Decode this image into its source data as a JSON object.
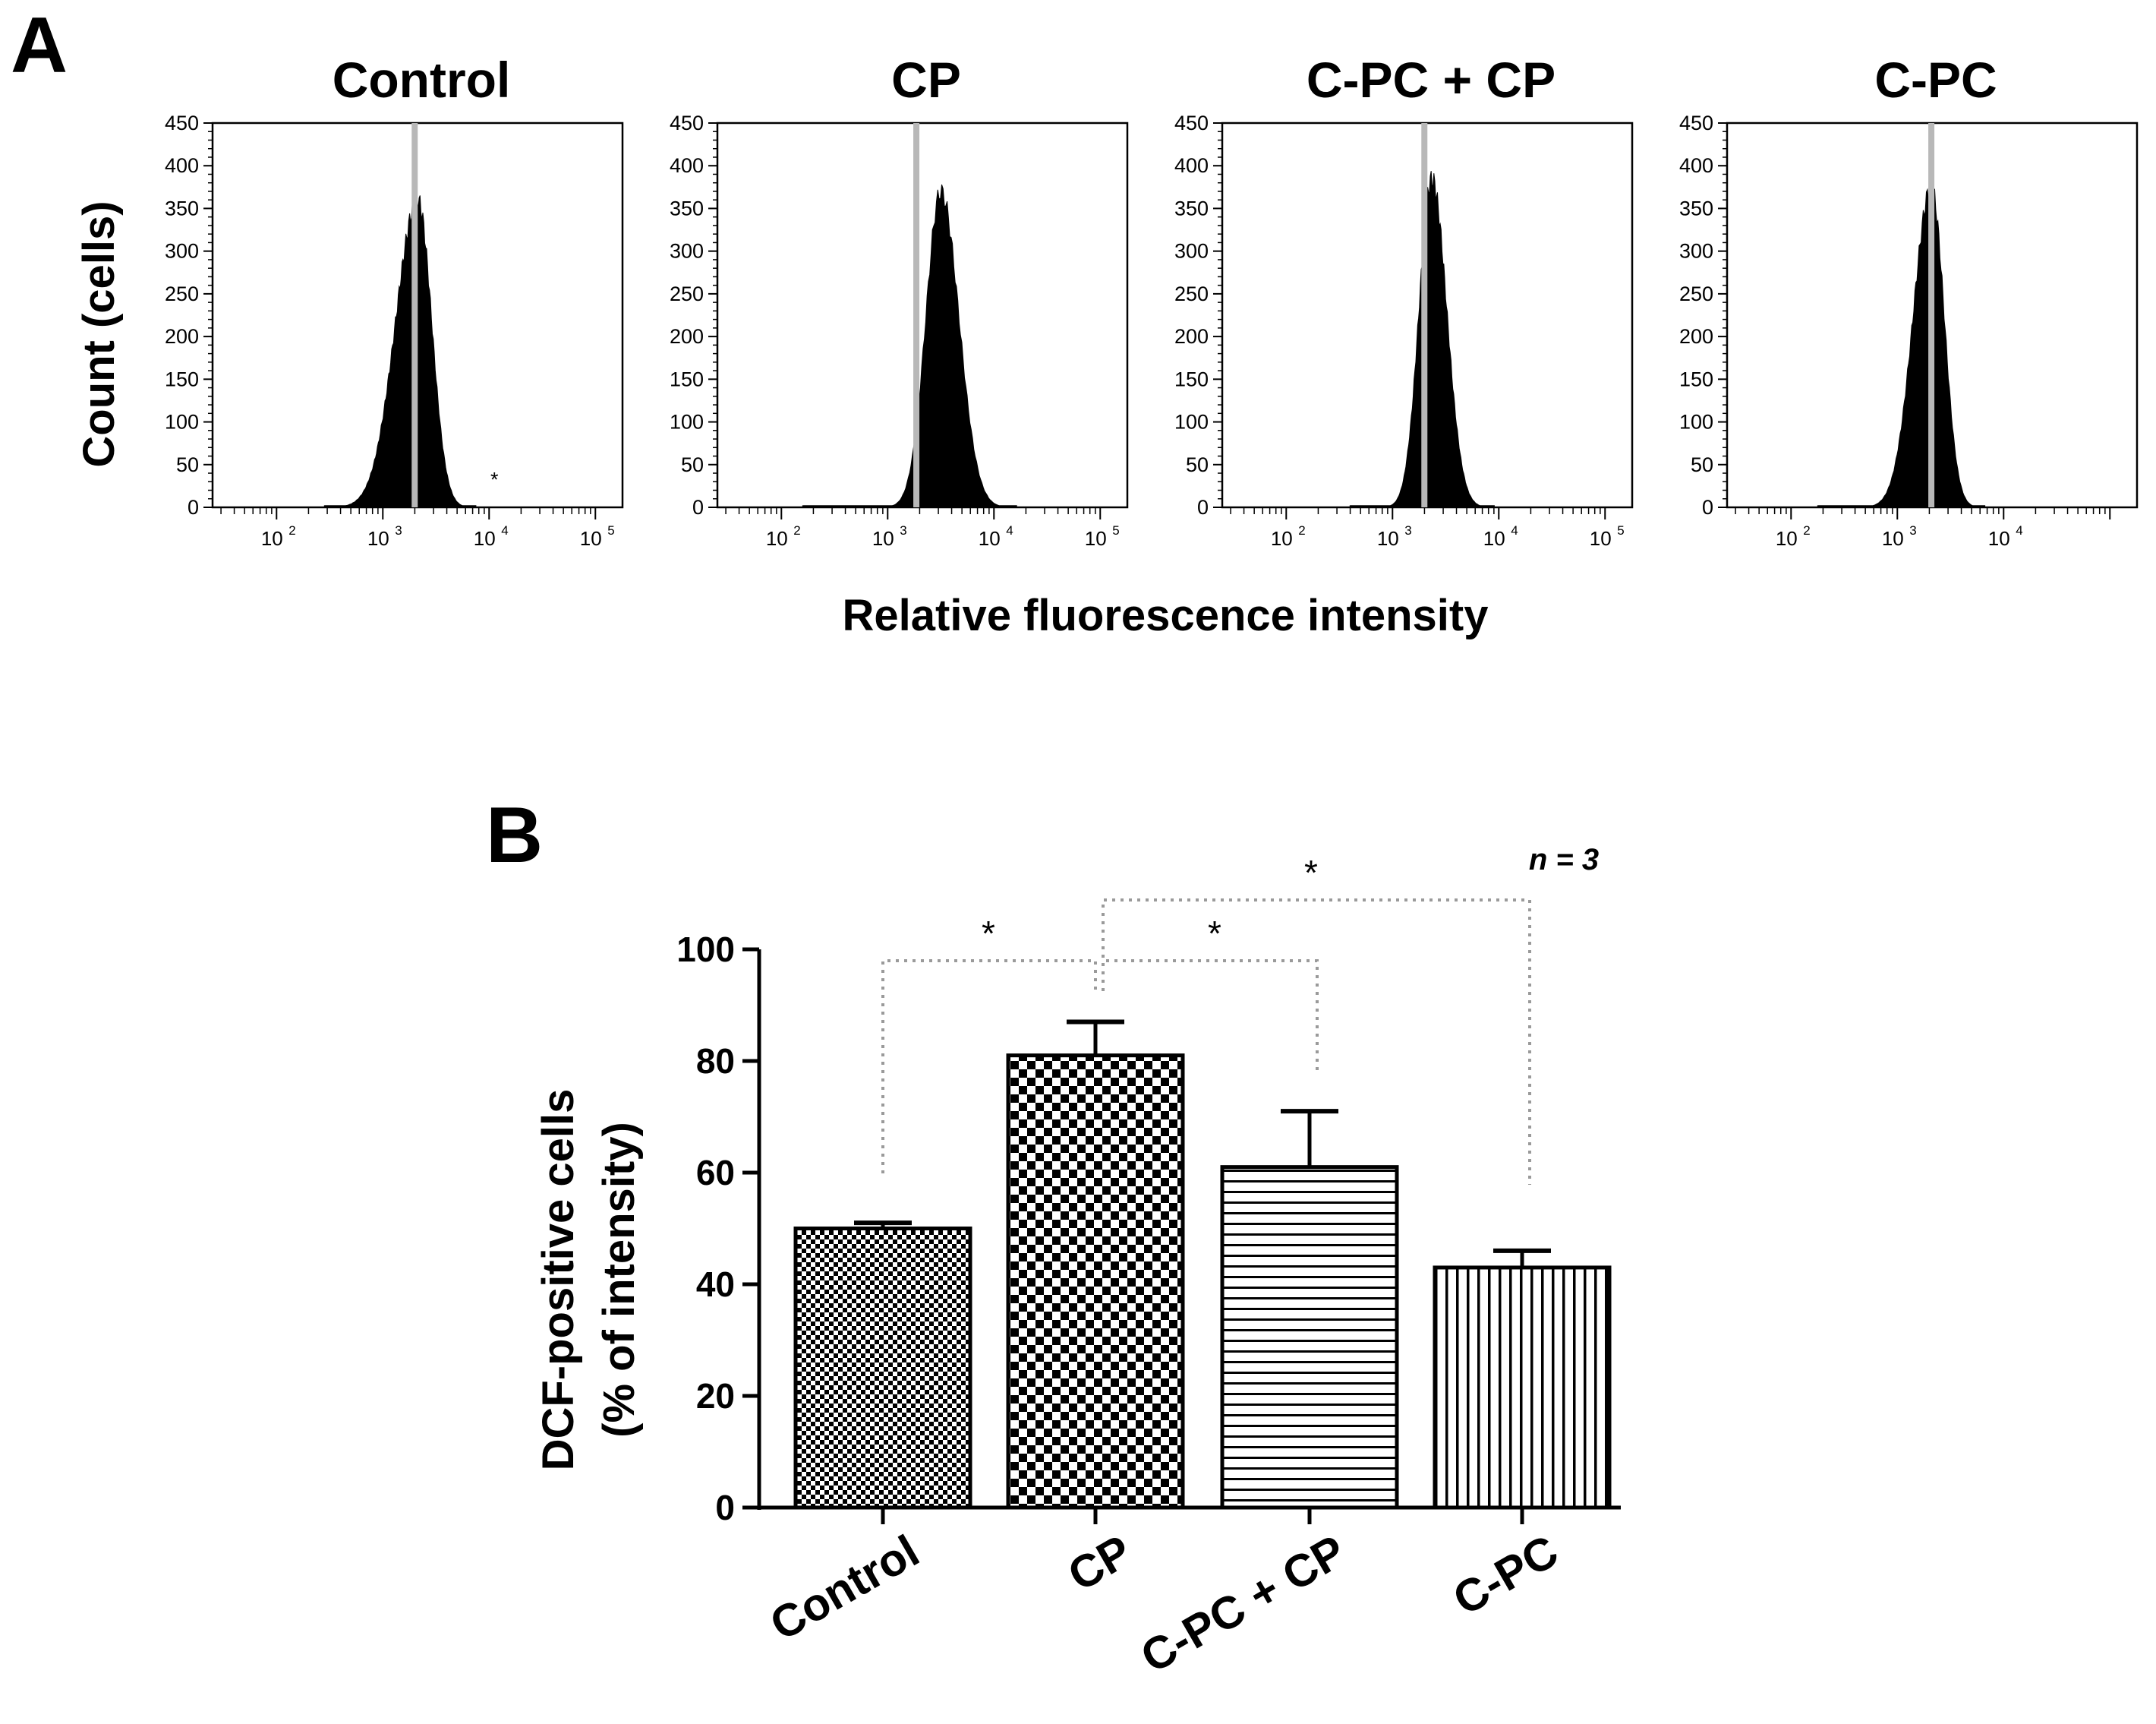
{
  "panels": {
    "a_label": "A",
    "b_label": "B"
  },
  "colors": {
    "ink": "#000000",
    "gate": "#b8b8b8",
    "bracket": "#9a9a9a"
  },
  "chart_data": [
    {
      "type": "histogram",
      "panel": "A",
      "ylabel": "Count (cells)",
      "xlabel": "Relative fluorescence intensity",
      "xscale": "log",
      "xlim": [
        25,
        180000
      ],
      "ylim": [
        0,
        450
      ],
      "yticks": [
        "0",
        "50",
        "100",
        "150",
        "200",
        "250",
        "300",
        "350",
        "400",
        "450"
      ],
      "xtick_labels": [
        {
          "base": "10",
          "exp": "2",
          "value": 100
        },
        {
          "base": "10",
          "exp": "3",
          "value": 1000
        },
        {
          "base": "10",
          "exp": "4",
          "value": 10000
        },
        {
          "base": "10",
          "exp": "5",
          "value": 100000
        }
      ],
      "histograms": [
        {
          "title": "Control",
          "peak_log10": 3.33,
          "peak_count": 360,
          "sigma_left": 0.21,
          "sigma_right": 0.13,
          "baseline_start_log10": 2.45,
          "gate_log10": 3.3,
          "show_x5_label": true,
          "marker": "*",
          "marker_log10": 4.05,
          "marker_count": 35
        },
        {
          "title": "CP",
          "peak_log10": 3.5,
          "peak_count": 370,
          "sigma_left": 0.14,
          "sigma_right": 0.17,
          "baseline_start_log10": 2.2,
          "gate_log10": 3.27,
          "show_x5_label": true
        },
        {
          "title": "C-PC + CP",
          "peak_log10": 3.37,
          "peak_count": 385,
          "sigma_left": 0.12,
          "sigma_right": 0.14,
          "baseline_start_log10": 2.6,
          "gate_log10": 3.3,
          "show_x5_label": true
        },
        {
          "title": "C-PC",
          "peak_log10": 3.32,
          "peak_count": 375,
          "sigma_left": 0.17,
          "sigma_right": 0.12,
          "baseline_start_log10": 2.25,
          "gate_log10": 3.32,
          "show_x5_label": false
        }
      ]
    },
    {
      "type": "bar",
      "panel": "B",
      "title": "",
      "ylabel_line1": "DCF-positive cells",
      "ylabel_line2": "(% of intensity)",
      "categories": [
        "Control",
        "CP",
        "C-PC + CP",
        "C-PC"
      ],
      "values": [
        50,
        81,
        61,
        43
      ],
      "errors": [
        1,
        6,
        10,
        3
      ],
      "patterns": [
        "fine-check",
        "check",
        "horizontal",
        "vertical"
      ],
      "ylim": [
        0,
        100
      ],
      "yticks": [
        "0",
        "20",
        "40",
        "60",
        "80",
        "100"
      ],
      "n_label": "n = 3",
      "significance": [
        {
          "from": "Control",
          "to": "CP",
          "label": "*"
        },
        {
          "from": "CP",
          "to": "C-PC + CP",
          "label": "*"
        },
        {
          "from": "CP",
          "to": "C-PC",
          "label": "*"
        }
      ]
    }
  ]
}
